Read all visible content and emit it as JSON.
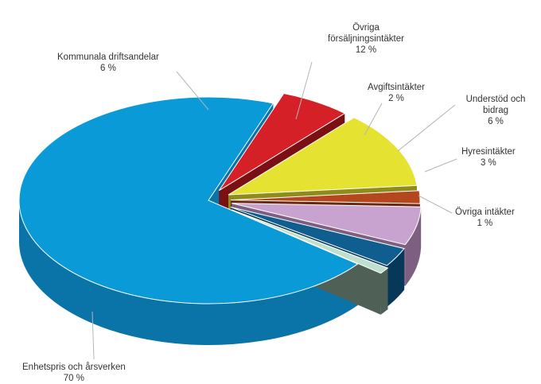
{
  "chart_data": {
    "type": "pie",
    "style": "3d-exploded",
    "legend": "none",
    "slices": [
      {
        "label": "Enhetspris och årsverken",
        "value_label": "70 %",
        "value": 70,
        "color": "#0a9ad8",
        "side": "#0a73a8"
      },
      {
        "label": "Kommunala driftsandelar",
        "value_label": "6 %",
        "value": 6,
        "color": "#d62027",
        "side": "#7a0f14"
      },
      {
        "label": "Övriga försäljningsintäkter",
        "value_label": "12 %",
        "value": 12,
        "color": "#e5e232",
        "side": "#8f8c1c"
      },
      {
        "label": "Avgiftsintäkter",
        "value_label": "2 %",
        "value": 2,
        "color": "#b5471e",
        "side": "#6a2810"
      },
      {
        "label": "Understöd och bidrag",
        "value_label": "6 %",
        "value": 6,
        "color": "#c9a3cf",
        "side": "#7d5f82"
      },
      {
        "label": "Hyresintäkter",
        "value_label": "3 %",
        "value": 3,
        "color": "#0f5e8f",
        "side": "#083858"
      },
      {
        "label": "Övriga intäkter",
        "value_label": "1 %",
        "value": 1,
        "color": "#bfe0cf",
        "side": "#4f6157"
      }
    ]
  }
}
